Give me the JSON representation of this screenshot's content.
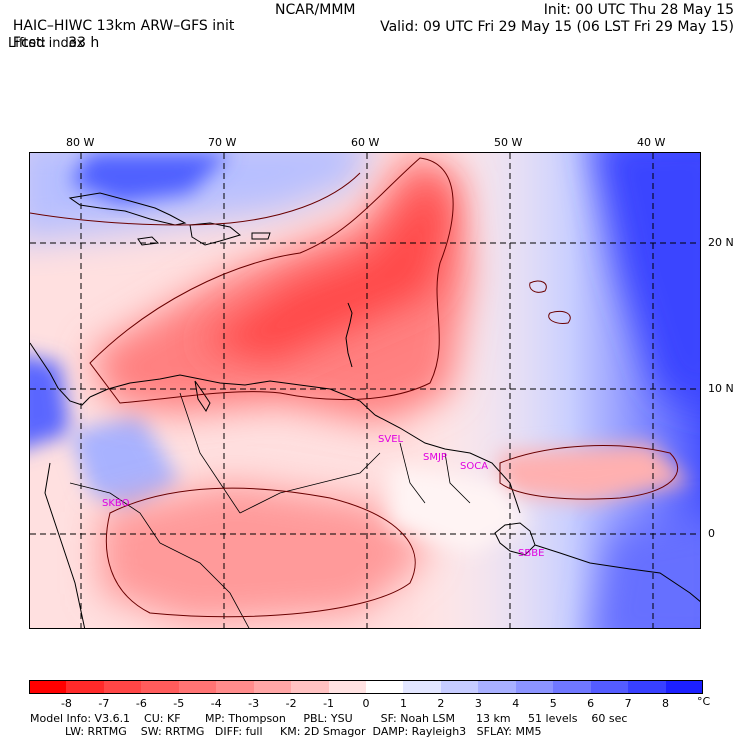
{
  "header": {
    "model_title": "HAIC–HIWC 13km ARW–GFS init",
    "org": "NCAR/MMM",
    "fcst_label": "Fcst:",
    "fcst_value": "33 h",
    "field_name": "Lifted index",
    "init": "Init: 00 UTC Thu 28 May 15",
    "valid": "Valid: 09 UTC Fri 29 May 15 (06 LST Fri 29 May 15)"
  },
  "map": {
    "lon_labels": [
      "80 W",
      "70 W",
      "60 W",
      "50 W",
      "40 W"
    ],
    "lat_labels": [
      "20 N",
      "10 N",
      "0"
    ],
    "stations": [
      "SKBO",
      "SVEL",
      "SMJP",
      "SOCA",
      "SBBE"
    ],
    "colors": {
      "unstable_dark": "#ff2222",
      "unstable_light": "#ffd6d6",
      "neutral": "#ffffff",
      "stable_light": "#d6dcff",
      "stable_dark": "#2a2aff",
      "station": "#e000e0"
    }
  },
  "colorbar": {
    "labels": [
      "-8",
      "-7",
      "-6",
      "-5",
      "-4",
      "-3",
      "-2",
      "-1",
      "0",
      "1",
      "2",
      "3",
      "4",
      "5",
      "6",
      "7",
      "8"
    ],
    "unit": "°C",
    "colors": [
      "#ff0000",
      "#ff2a2a",
      "#ff4646",
      "#ff5c5c",
      "#ff7474",
      "#ff8c8c",
      "#ffa6a6",
      "#ffc2c2",
      "#ffe2e2",
      "#ffffff",
      "#e2e6ff",
      "#c6ccff",
      "#a8b0ff",
      "#8c94ff",
      "#7078ff",
      "#545cff",
      "#3840ff",
      "#1c20ff"
    ]
  },
  "footer": {
    "line1": "Model Info: V3.6.1    CU: KF       MP: Thompson     PBL: YSU        SF: Noah LSM      13 km     51 levels    60 sec",
    "line2": "          LW: RRTMG    SW: RRTMG   DIFF: full     KM: 2D Smagor  DAMP: Rayleigh3   SFLAY: MM5"
  }
}
